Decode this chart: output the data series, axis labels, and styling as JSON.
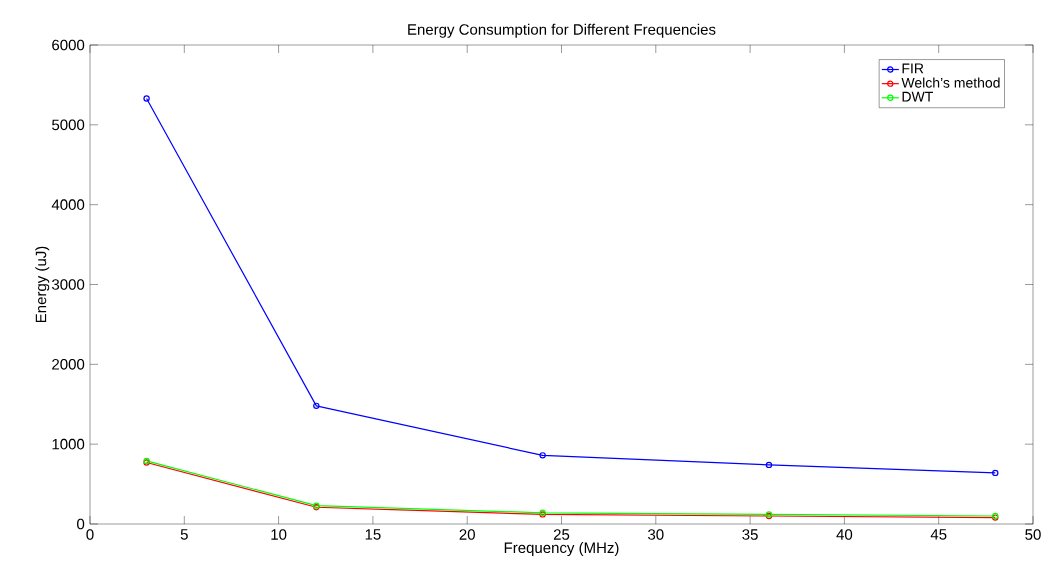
{
  "chart_data": {
    "type": "line",
    "title": "Energy Consumption for Different Frequencies",
    "xlabel": "Frequency (MHz)",
    "ylabel": "Energy (uJ)",
    "x": [
      3,
      12,
      24,
      36,
      48
    ],
    "series": [
      {
        "name": "FIR",
        "color": "#0000ff",
        "values": [
          5330,
          1480,
          860,
          740,
          640
        ]
      },
      {
        "name": "Welch’s method",
        "color": "#ff0000",
        "values": [
          770,
          210,
          120,
          100,
          80
        ]
      },
      {
        "name": "DWT",
        "color": "#00ff00",
        "values": [
          790,
          230,
          140,
          120,
          100
        ]
      }
    ],
    "xlim": [
      0,
      50
    ],
    "ylim": [
      0,
      6000
    ],
    "xticks": [
      0,
      5,
      10,
      15,
      20,
      25,
      30,
      35,
      40,
      45,
      50
    ],
    "yticks": [
      0,
      1000,
      2000,
      3000,
      4000,
      5000,
      6000
    ],
    "grid": false,
    "legend": "top right",
    "marker": "circle",
    "line_style": "solid"
  }
}
